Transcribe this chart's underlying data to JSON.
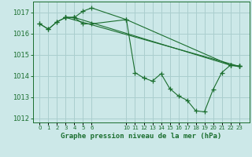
{
  "background_color": "#cce8e8",
  "grid_color": "#aacece",
  "line_color": "#1a6e2e",
  "title": "Graphe pression niveau de la mer (hPa)",
  "ylim": [
    1011.8,
    1017.5
  ],
  "yticks": [
    1012,
    1013,
    1014,
    1015,
    1016,
    1017
  ],
  "xlim": [
    -0.8,
    24.2
  ],
  "series": [
    {
      "x": [
        0,
        1,
        2,
        3,
        4,
        5,
        6,
        10,
        11,
        12,
        13,
        14,
        15,
        16,
        17,
        18,
        19,
        20,
        21,
        22,
        23
      ],
      "y": [
        1016.45,
        1016.2,
        1016.55,
        1016.75,
        1016.75,
        1016.45,
        1016.45,
        1016.65,
        1014.15,
        1013.9,
        1013.75,
        1014.1,
        1013.4,
        1013.05,
        1012.85,
        1012.35,
        1012.3,
        1013.35,
        1014.15,
        1014.5,
        1014.45
      ]
    },
    {
      "x": [
        0,
        1,
        2,
        3,
        4,
        5,
        6,
        10,
        22,
        23
      ],
      "y": [
        1016.45,
        1016.2,
        1016.55,
        1016.75,
        1016.75,
        1017.05,
        1017.2,
        1016.65,
        1014.5,
        1014.45
      ]
    },
    {
      "x": [
        3,
        4,
        22,
        23
      ],
      "y": [
        1016.75,
        1016.75,
        1014.5,
        1014.45
      ]
    },
    {
      "x": [
        3,
        23
      ],
      "y": [
        1016.75,
        1014.45
      ]
    }
  ],
  "xtick_positions": [
    0,
    1,
    2,
    3,
    4,
    5,
    6,
    10,
    11,
    12,
    13,
    14,
    15,
    16,
    17,
    18,
    19,
    20,
    21,
    22,
    23
  ],
  "xtick_labels": [
    "0",
    "1",
    "2",
    "3",
    "4",
    "5",
    "6",
    "10",
    "11",
    "12",
    "13",
    "14",
    "15",
    "16",
    "17",
    "18",
    "19",
    "20",
    "21",
    "22",
    "23"
  ]
}
